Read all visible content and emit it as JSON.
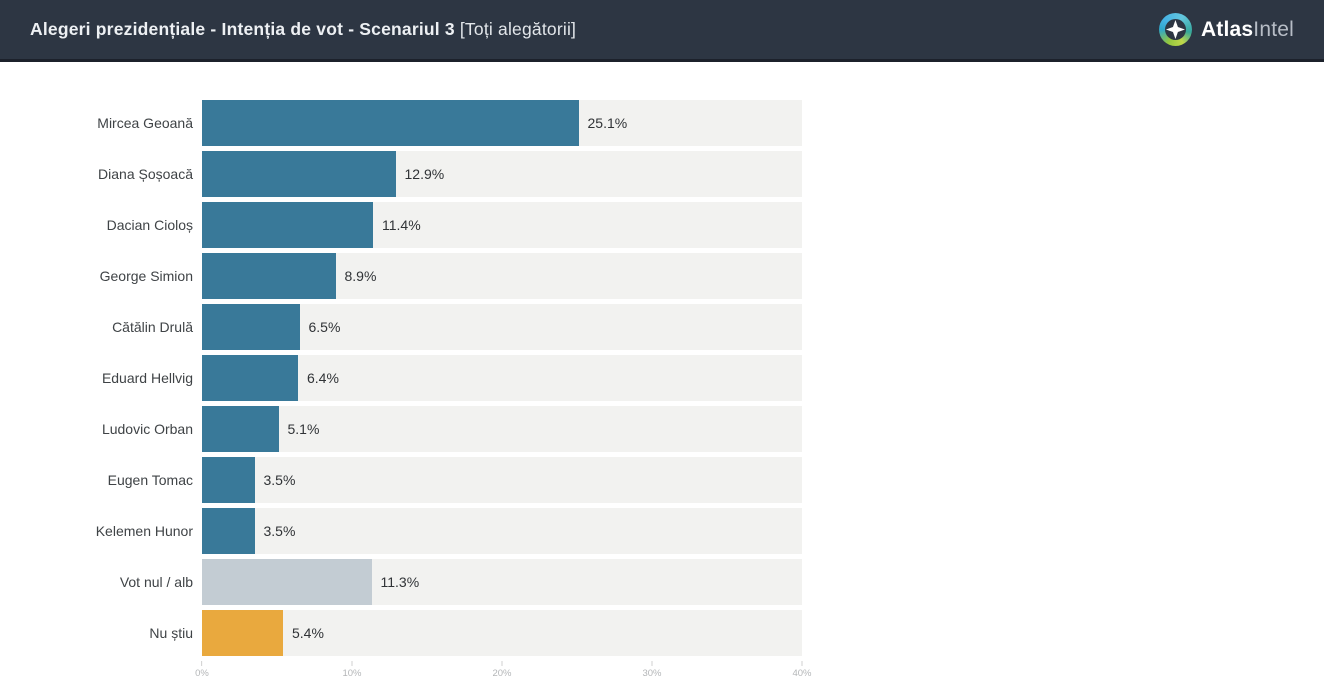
{
  "header": {
    "title_main": "Alegeri prezidențiale - Intenția de vot - Scenariul 3",
    "title_bracket": "[Toți alegătorii]",
    "logo": {
      "icon": "atlasintel-compass-icon",
      "part_bold": "Atlas",
      "part_light": "Intel"
    }
  },
  "colors": {
    "header_bg": "#2d3643",
    "header_border": "#1c212b",
    "bar_candidate": "#397999",
    "bar_null_vote": "#c3ccd3",
    "bar_dont_know": "#e9a93e",
    "bar_track": "#f2f2f0"
  },
  "chart_data": {
    "type": "bar",
    "orientation": "horizontal",
    "title": "Alegeri prezidențiale - Intenția de vot - Scenariul 3 [Toți alegătorii]",
    "categories": [
      "Mircea Geoană",
      "Diana Șoșoacă",
      "Dacian Cioloș",
      "George Simion",
      "Cătălin Drulă",
      "Eduard Hellvig",
      "Ludovic Orban",
      "Eugen Tomac",
      "Kelemen Hunor",
      "Vot nul / alb",
      "Nu știu"
    ],
    "values": [
      25.1,
      12.9,
      11.4,
      8.9,
      6.5,
      6.4,
      5.1,
      3.5,
      3.5,
      11.3,
      5.4
    ],
    "value_labels": [
      "25.1%",
      "12.9%",
      "11.4%",
      "8.9%",
      "6.5%",
      "6.4%",
      "5.1%",
      "3.5%",
      "3.5%",
      "11.3%",
      "5.4%"
    ],
    "colors": [
      "#397999",
      "#397999",
      "#397999",
      "#397999",
      "#397999",
      "#397999",
      "#397999",
      "#397999",
      "#397999",
      "#c3ccd3",
      "#e9a93e"
    ],
    "xlabel": "",
    "ylabel": "",
    "xlim": [
      0,
      40
    ],
    "xticks": [
      "0%",
      "10%",
      "20%",
      "30%",
      "40%"
    ],
    "grid": false,
    "legend": false
  }
}
